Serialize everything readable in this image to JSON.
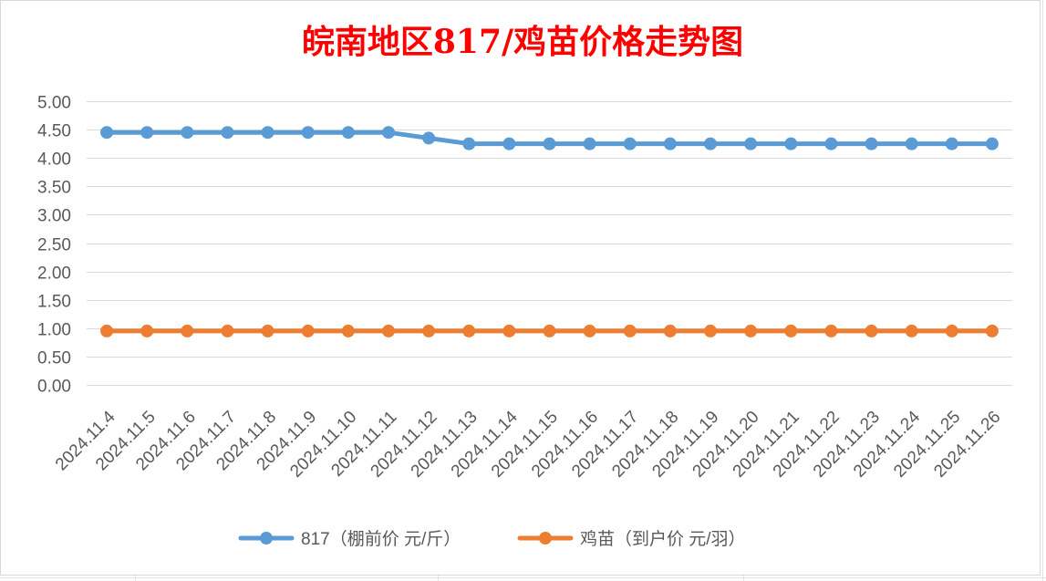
{
  "chart_data": {
    "type": "line",
    "title": "皖南地区817/鸡苗价格走势图",
    "title_color": "#FF0000",
    "categories": [
      "2024.11.4",
      "2024.11.5",
      "2024.11.6",
      "2024.11.7",
      "2024.11.8",
      "2024.11.9",
      "2024.11.10",
      "2024.11.11",
      "2024.11.12",
      "2024.11.13",
      "2024.11.14",
      "2024.11.15",
      "2024.11.16",
      "2024.11.17",
      "2024.11.18",
      "2024.11.19",
      "2024.11.20",
      "2024.11.21",
      "2024.11.22",
      "2024.11.23",
      "2024.11.24",
      "2024.11.25",
      "2024.11.26"
    ],
    "series": [
      {
        "name": "817（棚前价 元/斤）",
        "color": "#5B9BD5",
        "values": [
          4.45,
          4.45,
          4.45,
          4.45,
          4.45,
          4.45,
          4.45,
          4.45,
          4.35,
          4.25,
          4.25,
          4.25,
          4.25,
          4.25,
          4.25,
          4.25,
          4.25,
          4.25,
          4.25,
          4.25,
          4.25,
          4.25,
          4.25
        ]
      },
      {
        "name": "鸡苗（到户价 元/羽）",
        "color": "#ED7D31",
        "values": [
          0.95,
          0.95,
          0.95,
          0.95,
          0.95,
          0.95,
          0.95,
          0.95,
          0.95,
          0.95,
          0.95,
          0.95,
          0.95,
          0.95,
          0.95,
          0.95,
          0.95,
          0.95,
          0.95,
          0.95,
          0.95,
          0.95,
          0.95
        ]
      }
    ],
    "ylim": [
      0,
      5
    ],
    "yticks": [
      "0.00",
      "0.50",
      "1.00",
      "1.50",
      "2.00",
      "2.50",
      "3.00",
      "3.50",
      "4.00",
      "4.50",
      "5.00"
    ],
    "grid": true,
    "legend": "bottom"
  }
}
